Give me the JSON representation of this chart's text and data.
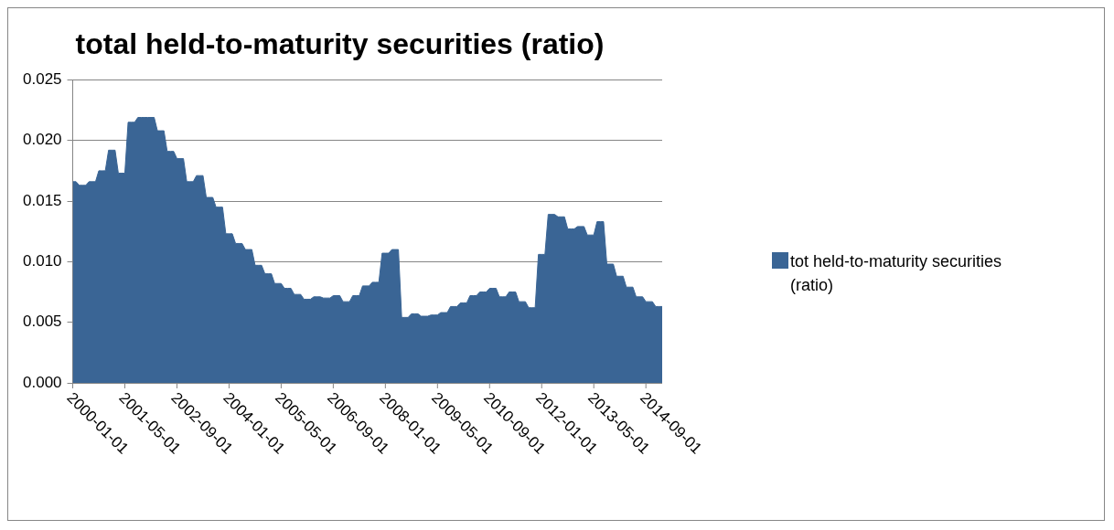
{
  "chart_data": {
    "type": "area",
    "title": "total held-to-maturity securities (ratio)",
    "x": [
      "2000-01",
      "2000-02",
      "2000-03",
      "2000-04",
      "2000-05",
      "2000-06",
      "2000-07",
      "2000-08",
      "2000-09",
      "2000-10",
      "2000-11",
      "2000-12",
      "2001-01",
      "2001-02",
      "2001-03",
      "2001-04",
      "2001-05",
      "2001-06",
      "2001-07",
      "2001-08",
      "2001-09",
      "2001-10",
      "2001-11",
      "2001-12",
      "2002-01",
      "2002-02",
      "2002-03",
      "2002-04",
      "2002-05",
      "2002-06",
      "2002-07",
      "2002-08",
      "2002-09",
      "2002-10",
      "2002-11",
      "2002-12",
      "2003-01",
      "2003-02",
      "2003-03",
      "2003-04",
      "2003-05",
      "2003-06",
      "2003-07",
      "2003-08",
      "2003-09",
      "2003-10",
      "2003-11",
      "2003-12",
      "2004-01",
      "2004-02",
      "2004-03",
      "2004-04",
      "2004-05",
      "2004-06",
      "2004-07",
      "2004-08",
      "2004-09",
      "2004-10",
      "2004-11",
      "2004-12",
      "2005-01",
      "2005-02",
      "2005-03",
      "2005-04",
      "2005-05",
      "2005-06",
      "2005-07",
      "2005-08",
      "2005-09",
      "2005-10",
      "2005-11",
      "2005-12",
      "2006-01",
      "2006-02",
      "2006-03",
      "2006-04",
      "2006-05",
      "2006-06",
      "2006-07",
      "2006-08",
      "2006-09",
      "2006-10",
      "2006-11",
      "2006-12",
      "2007-01",
      "2007-02",
      "2007-03",
      "2007-04",
      "2007-05",
      "2007-06",
      "2007-07",
      "2007-08",
      "2007-09",
      "2007-10",
      "2007-11",
      "2007-12",
      "2008-01",
      "2008-02",
      "2008-03",
      "2008-04",
      "2008-05",
      "2008-06",
      "2008-07",
      "2008-08",
      "2008-09",
      "2008-10",
      "2008-11",
      "2008-12",
      "2009-01",
      "2009-02",
      "2009-03",
      "2009-04",
      "2009-05",
      "2009-06",
      "2009-07",
      "2009-08",
      "2009-09",
      "2009-10",
      "2009-11",
      "2009-12",
      "2010-01",
      "2010-02",
      "2010-03",
      "2010-04",
      "2010-05",
      "2010-06",
      "2010-07",
      "2010-08",
      "2010-09",
      "2010-10",
      "2010-11",
      "2010-12",
      "2011-01",
      "2011-02",
      "2011-03",
      "2011-04",
      "2011-05",
      "2011-06",
      "2011-07",
      "2011-08",
      "2011-09",
      "2011-10",
      "2011-11",
      "2011-12",
      "2012-01",
      "2012-02",
      "2012-03",
      "2012-04",
      "2012-05",
      "2012-06",
      "2012-07",
      "2012-08",
      "2012-09",
      "2012-10",
      "2012-11",
      "2012-12",
      "2013-01",
      "2013-02",
      "2013-03",
      "2013-04",
      "2013-05",
      "2013-06",
      "2013-07",
      "2013-08",
      "2013-09",
      "2013-10",
      "2013-11",
      "2013-12",
      "2014-01",
      "2014-02",
      "2014-03",
      "2014-04",
      "2014-05",
      "2014-06",
      "2014-07",
      "2014-08",
      "2014-09",
      "2014-10",
      "2014-11",
      "2014-12",
      "2015-01",
      "2015-02"
    ],
    "series": [
      {
        "name": "tot held-to-maturity securities (ratio)",
        "color": "#3a6595",
        "values": [
          0.0166,
          0.0166,
          0.0163,
          0.0163,
          0.0163,
          0.0166,
          0.0166,
          0.0166,
          0.0175,
          0.0175,
          0.0175,
          0.0192,
          0.0192,
          0.0192,
          0.0173,
          0.0173,
          0.0173,
          0.0215,
          0.0215,
          0.0215,
          0.0219,
          0.0219,
          0.0219,
          0.0219,
          0.0219,
          0.0219,
          0.0208,
          0.0208,
          0.0208,
          0.0191,
          0.0191,
          0.0191,
          0.0185,
          0.0185,
          0.0185,
          0.0166,
          0.0166,
          0.0166,
          0.0171,
          0.0171,
          0.0171,
          0.0153,
          0.0153,
          0.0153,
          0.0145,
          0.0145,
          0.0145,
          0.0123,
          0.0123,
          0.0123,
          0.0115,
          0.0115,
          0.0115,
          0.011,
          0.011,
          0.011,
          0.0097,
          0.0097,
          0.0097,
          0.009,
          0.009,
          0.009,
          0.0082,
          0.0082,
          0.0082,
          0.0078,
          0.0078,
          0.0078,
          0.0073,
          0.0073,
          0.0073,
          0.0069,
          0.0069,
          0.0069,
          0.0071,
          0.0071,
          0.0071,
          0.007,
          0.007,
          0.007,
          0.0072,
          0.0072,
          0.0072,
          0.0067,
          0.0067,
          0.0067,
          0.0072,
          0.0072,
          0.0072,
          0.008,
          0.008,
          0.008,
          0.0083,
          0.0083,
          0.0083,
          0.0107,
          0.0107,
          0.0107,
          0.011,
          0.011,
          0.011,
          0.0054,
          0.0054,
          0.0054,
          0.0057,
          0.0057,
          0.0057,
          0.0055,
          0.0055,
          0.0055,
          0.0056,
          0.0056,
          0.0056,
          0.0058,
          0.0058,
          0.0058,
          0.0063,
          0.0063,
          0.0063,
          0.0066,
          0.0066,
          0.0066,
          0.0072,
          0.0072,
          0.0072,
          0.0075,
          0.0075,
          0.0075,
          0.0078,
          0.0078,
          0.0078,
          0.0071,
          0.0071,
          0.0071,
          0.0075,
          0.0075,
          0.0075,
          0.0067,
          0.0067,
          0.0067,
          0.0062,
          0.0062,
          0.0062,
          0.0106,
          0.0106,
          0.0106,
          0.0139,
          0.0139,
          0.0139,
          0.0137,
          0.0137,
          0.0137,
          0.0127,
          0.0127,
          0.0127,
          0.0129,
          0.0129,
          0.0129,
          0.0122,
          0.0122,
          0.0122,
          0.0133,
          0.0133,
          0.0133,
          0.0098,
          0.0098,
          0.0098,
          0.0088,
          0.0088,
          0.0088,
          0.0079,
          0.0079,
          0.0079,
          0.0071,
          0.0071,
          0.0071,
          0.0067,
          0.0067,
          0.0067,
          0.0063,
          0.0063,
          0.0063
        ]
      }
    ],
    "xlim": [
      "2000-01",
      "2015-02"
    ],
    "xticks": [
      "2000-01-01",
      "2001-05-01",
      "2002-09-01",
      "2004-01-01",
      "2005-05-01",
      "2006-09-01",
      "2008-01-01",
      "2009-05-01",
      "2010-09-01",
      "2012-01-01",
      "2013-05-01",
      "2014-09-01"
    ],
    "ylim": [
      0,
      0.025
    ],
    "yticks": [
      {
        "value": 0,
        "label": "0.000"
      },
      {
        "value": 0.005,
        "label": "0.005"
      },
      {
        "value": 0.01,
        "label": "0.010"
      },
      {
        "value": 0.015,
        "label": "0.015"
      },
      {
        "value": 0.02,
        "label": "0.020"
      },
      {
        "value": 0.025,
        "label": "0.025"
      }
    ],
    "grid": "y",
    "legend": "right"
  }
}
